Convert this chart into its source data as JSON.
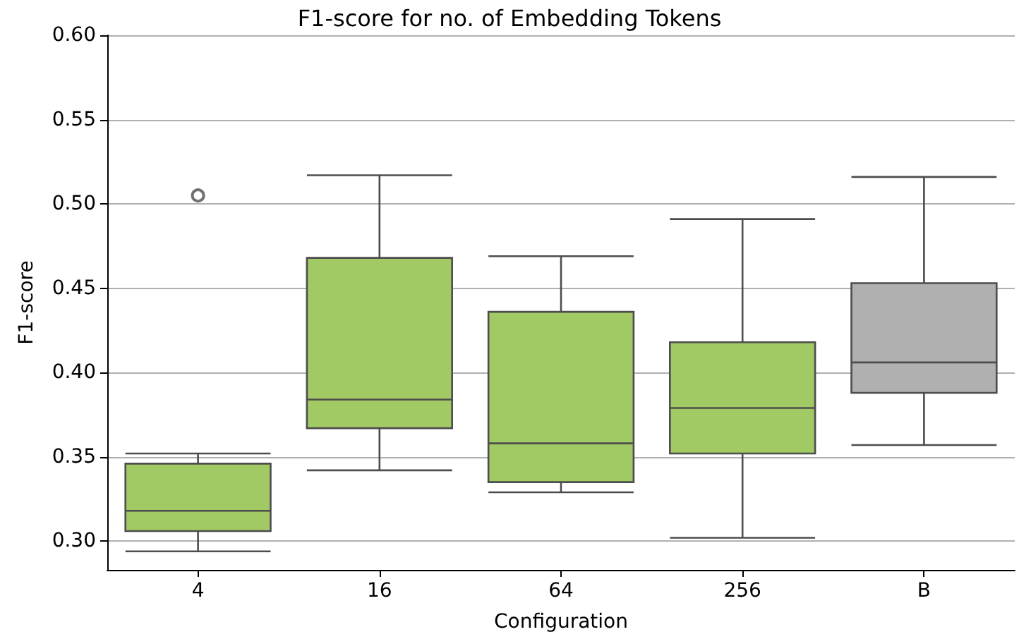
{
  "chart_data": {
    "type": "box",
    "title": "F1-score for no. of Embedding Tokens",
    "xlabel": "Configuration",
    "ylabel": "F1-score",
    "categories": [
      "4",
      "16",
      "64",
      "256",
      "B"
    ],
    "colors": [
      "#a1c964",
      "#a1c964",
      "#a1c964",
      "#a1c964",
      "#b0b0b0"
    ],
    "boxes": [
      {
        "low": 0.294,
        "q1": 0.306,
        "median": 0.318,
        "q3": 0.346,
        "high": 0.352,
        "outliers": [
          0.505
        ]
      },
      {
        "low": 0.342,
        "q1": 0.367,
        "median": 0.384,
        "q3": 0.468,
        "high": 0.517
      },
      {
        "low": 0.329,
        "q1": 0.335,
        "median": 0.358,
        "q3": 0.436,
        "high": 0.469
      },
      {
        "low": 0.302,
        "q1": 0.352,
        "median": 0.379,
        "q3": 0.418,
        "high": 0.491
      },
      {
        "low": 0.357,
        "q1": 0.388,
        "median": 0.406,
        "q3": 0.453,
        "high": 0.516
      }
    ],
    "ylim": [
      0.283,
      0.6
    ],
    "yticks": [
      {
        "value": 0.3,
        "label": "0.30"
      },
      {
        "value": 0.35,
        "label": "0.35"
      },
      {
        "value": 0.4,
        "label": "0.40"
      },
      {
        "value": 0.45,
        "label": "0.45"
      },
      {
        "value": 0.5,
        "label": "0.50"
      },
      {
        "value": 0.55,
        "label": "0.55"
      },
      {
        "value": 0.6,
        "label": "0.60"
      }
    ],
    "grid": "y"
  }
}
